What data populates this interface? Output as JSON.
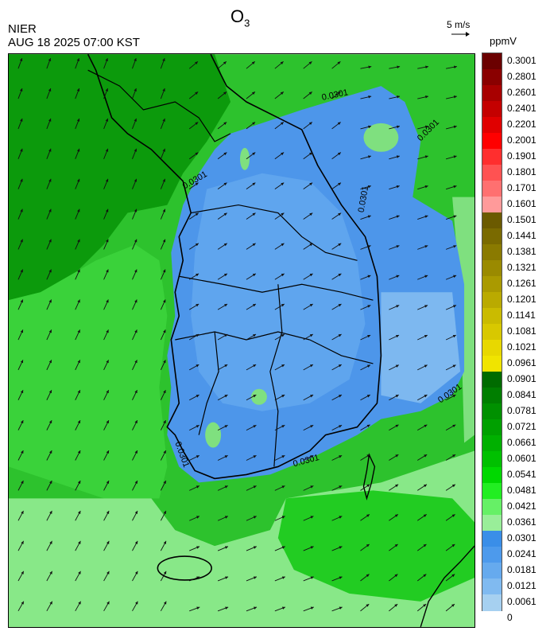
{
  "header": {
    "title_main": "O",
    "title_sub": "3",
    "agency": "NIER",
    "timestamp": "AUG 18 2025 07:00 KST"
  },
  "wind_scale": {
    "label": "5 m/s"
  },
  "legend": {
    "unit": "ppmV",
    "labels": [
      "0.3001",
      "0.2801",
      "0.2601",
      "0.2401",
      "0.2201",
      "0.2001",
      "0.1901",
      "0.1801",
      "0.1701",
      "0.1601",
      "0.1501",
      "0.1441",
      "0.1381",
      "0.1321",
      "0.1261",
      "0.1201",
      "0.1141",
      "0.1081",
      "0.1021",
      "0.0961",
      "0.0901",
      "0.0841",
      "0.0781",
      "0.0721",
      "0.0661",
      "0.0601",
      "0.0541",
      "0.0481",
      "0.0421",
      "0.0361",
      "0.0301",
      "0.0241",
      "0.0181",
      "0.0121",
      "0.0061",
      "0"
    ],
    "colors": [
      "#6b0000",
      "#8a0000",
      "#a80000",
      "#c40000",
      "#e00000",
      "#ff0000",
      "#ff2e2e",
      "#ff5252",
      "#ff7070",
      "#ff9a9a",
      "#6b5a00",
      "#7a6a00",
      "#8a7a00",
      "#9a8a00",
      "#aa9a00",
      "#baaa00",
      "#cabb00",
      "#d8c800",
      "#e8d800",
      "#f0e400",
      "#006b00",
      "#007e00",
      "#009000",
      "#00a000",
      "#00b000",
      "#00c000",
      "#00d800",
      "#22ee22",
      "#66f066",
      "#99ee99",
      "#3a8ee8",
      "#4d9aec",
      "#66aaee",
      "#80baf0",
      "#a6d0f0"
    ]
  },
  "map": {
    "contour_label": "0.0301",
    "colors": {
      "sea_green": "#22c422",
      "land_green": "#33cc33",
      "dark_green": "#0f9a0f",
      "light_green": "#7fe07f",
      "korea_blue": "#4d96ea",
      "korea_light": "#6aa7ec",
      "border": "#000000"
    }
  }
}
